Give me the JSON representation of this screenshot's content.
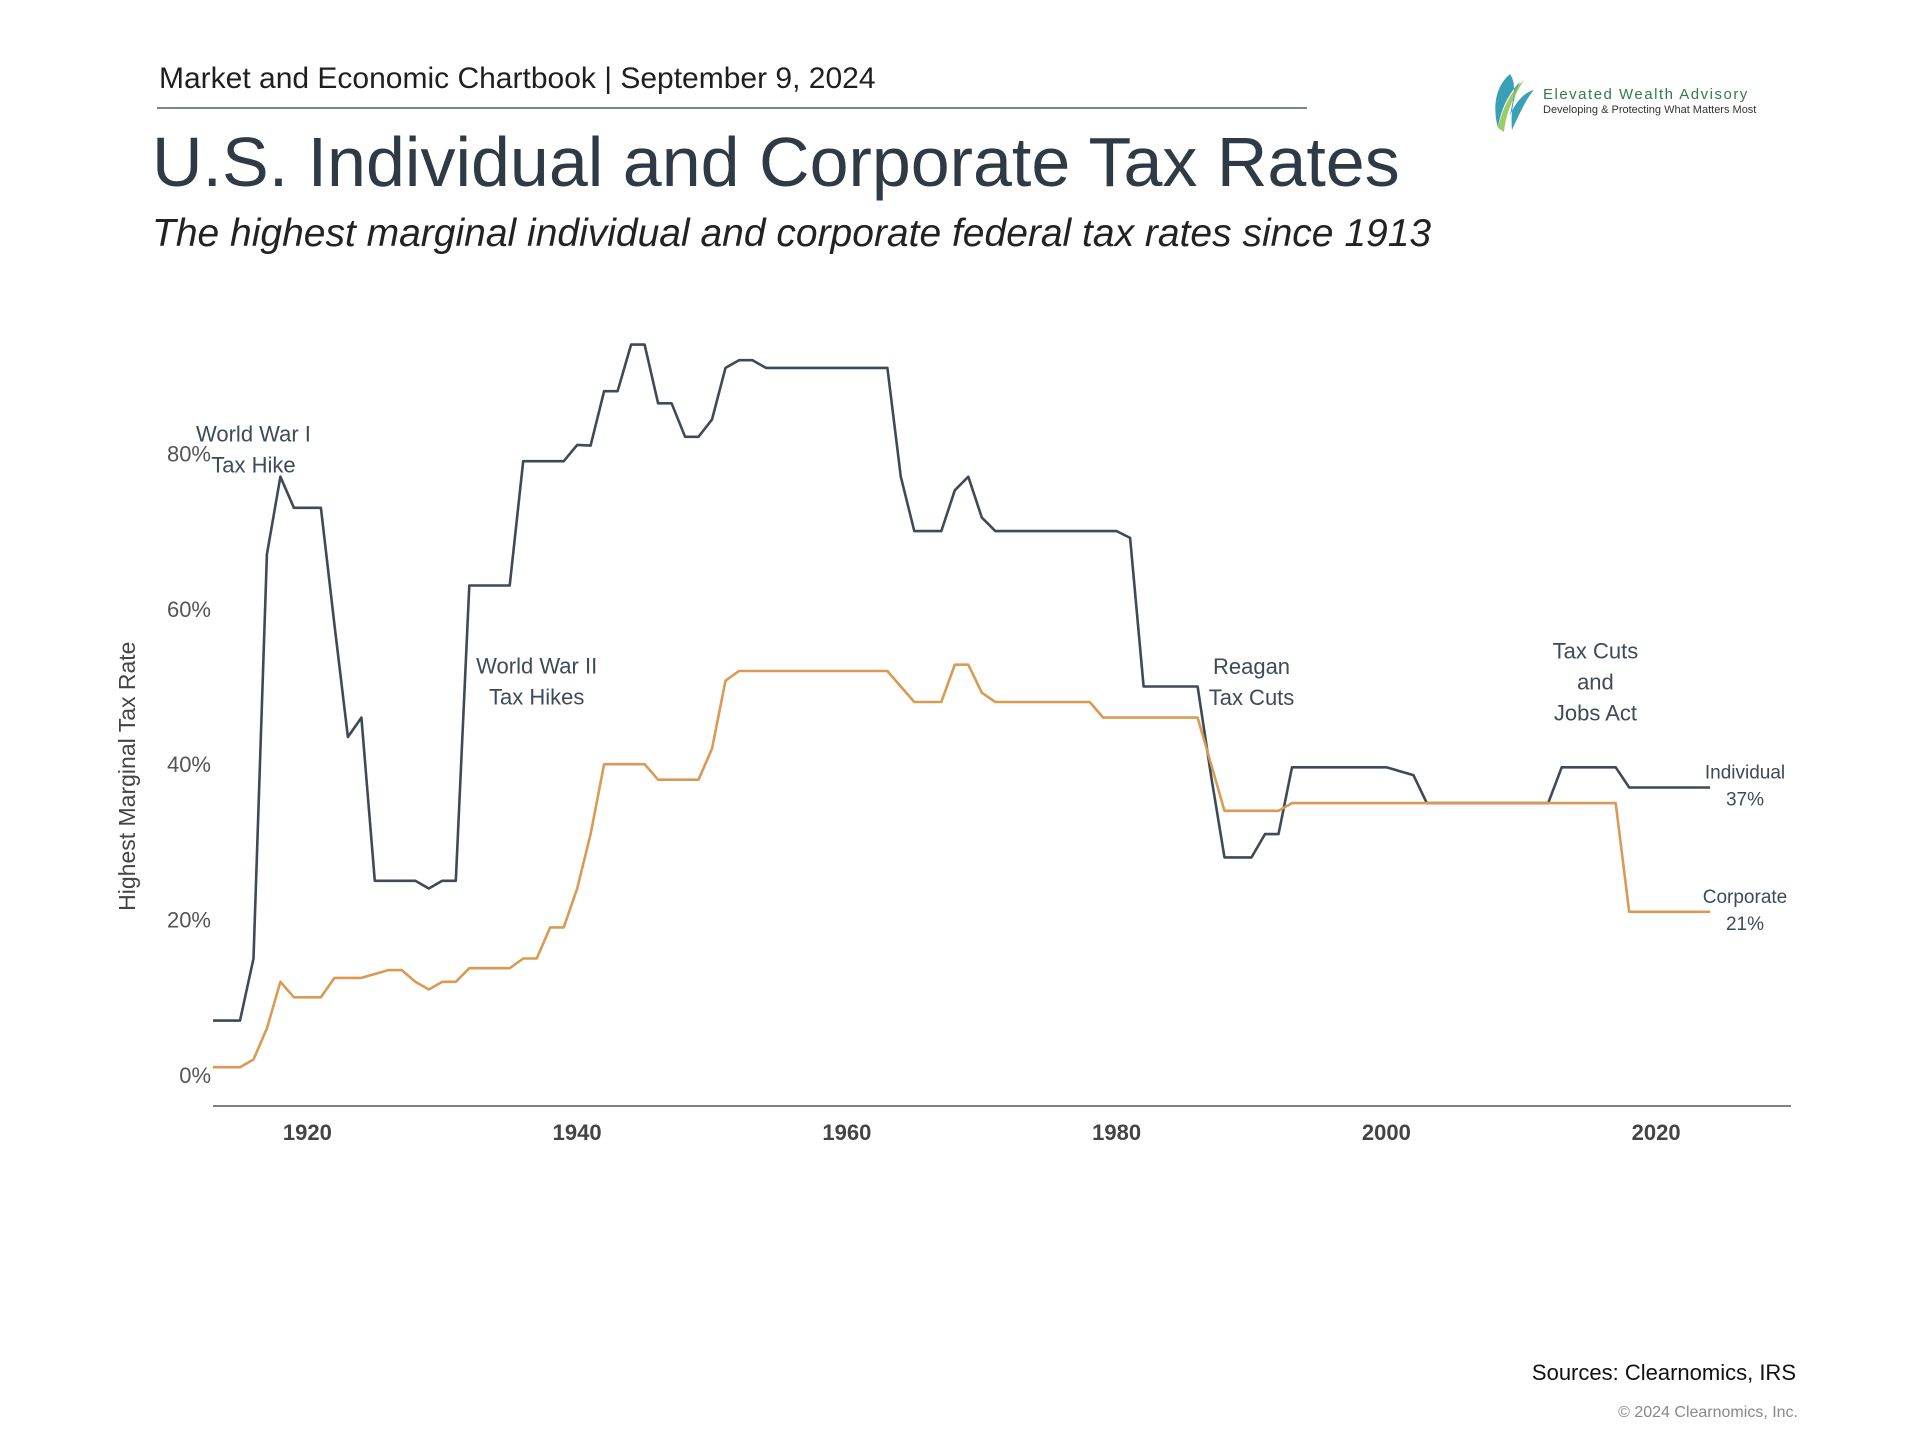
{
  "header": {
    "chartbook": "Market and Economic Chartbook | September 9, 2024"
  },
  "title": "U.S. Individual and Corporate Tax Rates",
  "subtitle": "The highest marginal individual and corporate federal tax rates since 1913",
  "logo": {
    "name": "Elevated Wealth Advisory",
    "tagline": "Developing & Protecting What Matters Most",
    "icon": "leaf-swoosh-icon"
  },
  "colors": {
    "individual": "#3d4a57",
    "corporate": "#d99a55",
    "axis": "#555555",
    "text": "#3d4a57"
  },
  "chart_data": {
    "type": "line",
    "ylabel": "Highest Marginal Tax Rate",
    "xlim": [
      1913,
      2030
    ],
    "ylim": [
      0,
      100
    ],
    "y_ticks": [
      0,
      20,
      40,
      60,
      80
    ],
    "y_tick_labels": [
      "0%",
      "20%",
      "40%",
      "60%",
      "80%"
    ],
    "x_ticks": [
      1920,
      1940,
      1960,
      1980,
      2000,
      2020
    ],
    "x_tick_labels": [
      "1920",
      "1940",
      "1960",
      "1980",
      "2000",
      "2020"
    ],
    "grid": false,
    "series": [
      {
        "key": "individual",
        "name": "Individual",
        "end_label": "37%",
        "points": [
          [
            1913,
            7
          ],
          [
            1915,
            7
          ],
          [
            1916,
            15
          ],
          [
            1917,
            67
          ],
          [
            1918,
            77
          ],
          [
            1919,
            73
          ],
          [
            1921,
            73
          ],
          [
            1922,
            58
          ],
          [
            1923,
            43.5
          ],
          [
            1924,
            46
          ],
          [
            1925,
            25
          ],
          [
            1928,
            25
          ],
          [
            1929,
            24
          ],
          [
            1930,
            25
          ],
          [
            1931,
            25
          ],
          [
            1932,
            63
          ],
          [
            1935,
            63
          ],
          [
            1936,
            79
          ],
          [
            1939,
            79
          ],
          [
            1940,
            81.1
          ],
          [
            1941,
            81
          ],
          [
            1942,
            88
          ],
          [
            1943,
            88
          ],
          [
            1944,
            94
          ],
          [
            1945,
            94
          ],
          [
            1946,
            86.45
          ],
          [
            1947,
            86.45
          ],
          [
            1948,
            82.13
          ],
          [
            1949,
            82.13
          ],
          [
            1950,
            84.36
          ],
          [
            1951,
            91
          ],
          [
            1952,
            92
          ],
          [
            1953,
            92
          ],
          [
            1954,
            91
          ],
          [
            1963,
            91
          ],
          [
            1964,
            77
          ],
          [
            1965,
            70
          ],
          [
            1967,
            70
          ],
          [
            1968,
            75.25
          ],
          [
            1969,
            77
          ],
          [
            1970,
            71.75
          ],
          [
            1971,
            70
          ],
          [
            1980,
            70
          ],
          [
            1981,
            69.13
          ],
          [
            1982,
            50
          ],
          [
            1986,
            50
          ],
          [
            1987,
            38.5
          ],
          [
            1988,
            28
          ],
          [
            1990,
            28
          ],
          [
            1991,
            31
          ],
          [
            1992,
            31
          ],
          [
            1993,
            39.6
          ],
          [
            2000,
            39.6
          ],
          [
            2001,
            39.1
          ],
          [
            2002,
            38.6
          ],
          [
            2003,
            35
          ],
          [
            2012,
            35
          ],
          [
            2013,
            39.6
          ],
          [
            2017,
            39.6
          ],
          [
            2018,
            37
          ],
          [
            2024,
            37
          ]
        ]
      },
      {
        "key": "corporate",
        "name": "Corporate",
        "end_label": "21%",
        "points": [
          [
            1913,
            1
          ],
          [
            1915,
            1
          ],
          [
            1916,
            2
          ],
          [
            1917,
            6
          ],
          [
            1918,
            12
          ],
          [
            1919,
            10
          ],
          [
            1921,
            10
          ],
          [
            1922,
            12.5
          ],
          [
            1924,
            12.5
          ],
          [
            1925,
            13
          ],
          [
            1926,
            13.5
          ],
          [
            1927,
            13.5
          ],
          [
            1928,
            12
          ],
          [
            1929,
            11
          ],
          [
            1930,
            12
          ],
          [
            1931,
            12
          ],
          [
            1932,
            13.75
          ],
          [
            1935,
            13.75
          ],
          [
            1936,
            15
          ],
          [
            1937,
            15
          ],
          [
            1938,
            19
          ],
          [
            1939,
            19
          ],
          [
            1940,
            24
          ],
          [
            1941,
            31
          ],
          [
            1942,
            40
          ],
          [
            1945,
            40
          ],
          [
            1946,
            38
          ],
          [
            1949,
            38
          ],
          [
            1950,
            42
          ],
          [
            1951,
            50.75
          ],
          [
            1952,
            52
          ],
          [
            1963,
            52
          ],
          [
            1964,
            50
          ],
          [
            1965,
            48
          ],
          [
            1967,
            48
          ],
          [
            1968,
            52.8
          ],
          [
            1969,
            52.8
          ],
          [
            1970,
            49.2
          ],
          [
            1971,
            48
          ],
          [
            1978,
            48
          ],
          [
            1979,
            46
          ],
          [
            1986,
            46
          ],
          [
            1987,
            40
          ],
          [
            1988,
            34
          ],
          [
            1992,
            34
          ],
          [
            1993,
            35
          ],
          [
            2017,
            35
          ],
          [
            2018,
            21
          ],
          [
            2024,
            21
          ]
        ]
      }
    ],
    "annotations": [
      {
        "lines": [
          "World War I",
          "Tax Hike"
        ],
        "x": 1916,
        "y": 81.5
      },
      {
        "lines": [
          "World War II",
          "Tax Hikes"
        ],
        "x": 1937,
        "y": 51.7
      },
      {
        "lines": [
          "Reagan",
          "Tax Cuts"
        ],
        "x": 1990,
        "y": 51.6
      },
      {
        "lines": [
          "Tax Cuts",
          "and",
          "Jobs Act"
        ],
        "x": 2015.5,
        "y": 53.6
      }
    ]
  },
  "footer": {
    "sources": "Sources: Clearnomics, IRS",
    "copyright": "© 2024 Clearnomics, Inc."
  }
}
